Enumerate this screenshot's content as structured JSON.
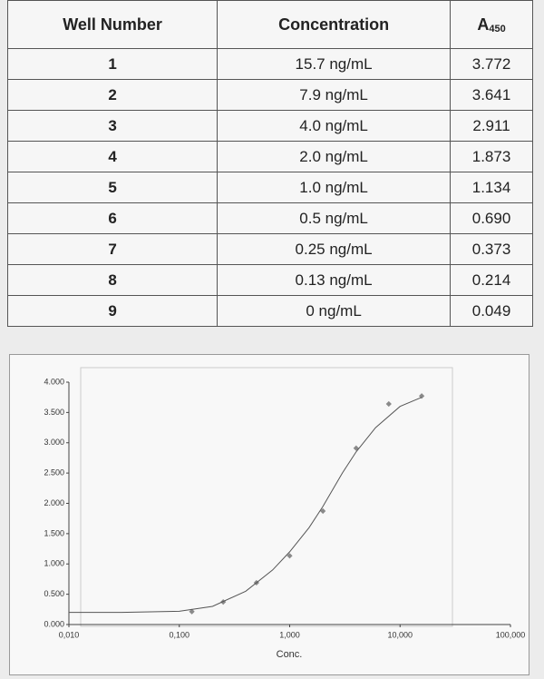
{
  "table": {
    "columns": [
      {
        "text": "Well Number"
      },
      {
        "text": "Concentration"
      },
      {
        "text": "A",
        "sub": "450"
      }
    ],
    "rows": [
      [
        "1",
        "15.7 ng/mL",
        "3.772"
      ],
      [
        "2",
        "7.9 ng/mL",
        "3.641"
      ],
      [
        "3",
        "4.0 ng/mL",
        "2.911"
      ],
      [
        "4",
        "2.0 ng/mL",
        "1.873"
      ],
      [
        "5",
        "1.0 ng/mL",
        "1.134"
      ],
      [
        "6",
        "0.5 ng/mL",
        "0.690"
      ],
      [
        "7",
        "0.25 ng/mL",
        "0.373"
      ],
      [
        "8",
        "0.13 ng/mL",
        "0.214"
      ],
      [
        "9",
        "0 ng/mL",
        "0.049"
      ]
    ]
  },
  "chart_data": {
    "type": "scatter",
    "x_label": "Conc.",
    "log_x": true,
    "xlim": [
      0.01,
      100
    ],
    "xticks": [
      {
        "value": 0.01,
        "label": "0,010"
      },
      {
        "value": 0.1,
        "label": "0,100"
      },
      {
        "value": 1,
        "label": "1,000"
      },
      {
        "value": 10,
        "label": "10,000"
      },
      {
        "value": 100,
        "label": "100,000"
      }
    ],
    "ylim": [
      0,
      4
    ],
    "yticks": [
      {
        "value": 0,
        "label": "0.000"
      },
      {
        "value": 0.5,
        "label": "0.500"
      },
      {
        "value": 1,
        "label": "1.000"
      },
      {
        "value": 1.5,
        "label": "1.500"
      },
      {
        "value": 2,
        "label": "2.000"
      },
      {
        "value": 2.5,
        "label": "2.500"
      },
      {
        "value": 3,
        "label": "3.000"
      },
      {
        "value": 3.5,
        "label": "3.500"
      },
      {
        "value": 4,
        "label": "4.000"
      }
    ],
    "series": [
      {
        "type": "scatter",
        "color": "#8a8a8a",
        "x": [
          15.7,
          7.9,
          4.0,
          2.0,
          1.0,
          0.5,
          0.25,
          0.13
        ],
        "values": [
          3.772,
          3.641,
          2.911,
          1.873,
          1.134,
          0.69,
          0.373,
          0.214
        ]
      },
      {
        "type": "line",
        "color": "#555555",
        "x": [
          0.01,
          0.03,
          0.1,
          0.2,
          0.4,
          0.7,
          1,
          1.5,
          2,
          3,
          4,
          6,
          10,
          15.7
        ],
        "values": [
          0.2,
          0.2,
          0.22,
          0.3,
          0.55,
          0.9,
          1.2,
          1.6,
          1.95,
          2.5,
          2.85,
          3.25,
          3.6,
          3.75
        ]
      }
    ]
  }
}
